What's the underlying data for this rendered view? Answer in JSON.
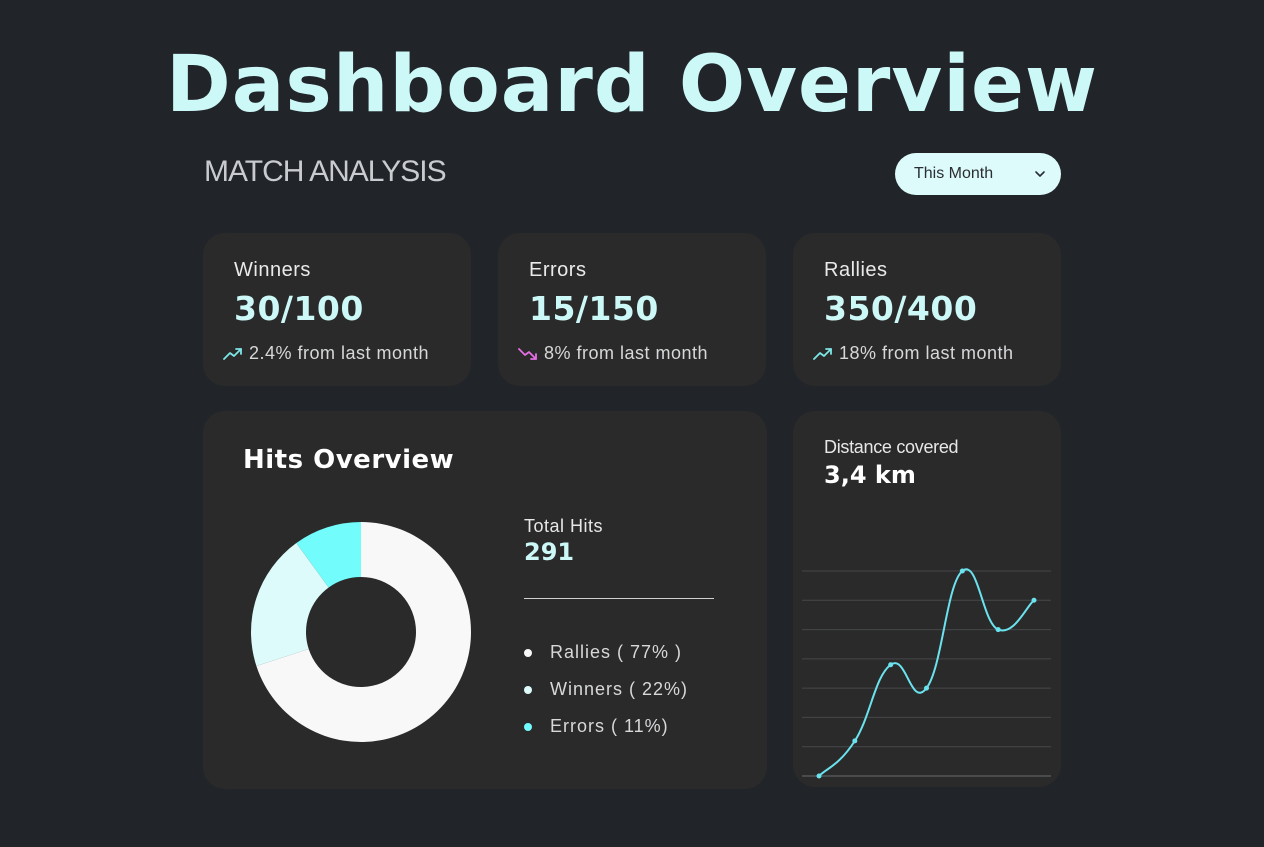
{
  "title": "Dashboard Overview",
  "subtitle": "MATCH ANALYSIS",
  "period_select": {
    "value": "This Month",
    "icon": "chevron-down-icon"
  },
  "stats": [
    {
      "label": "Winners",
      "value": "30/100",
      "trend": "2.4% from last month",
      "direction": "up",
      "trend_icon": "trend-up-icon",
      "trend_color": "#7de6e6"
    },
    {
      "label": "Errors",
      "value": "15/150",
      "trend": "8% from last month",
      "direction": "down",
      "trend_icon": "trend-down-icon",
      "trend_color": "#e46ee4"
    },
    {
      "label": "Rallies",
      "value": "350/400",
      "trend": "18% from last month",
      "direction": "up",
      "trend_icon": "trend-up-icon",
      "trend_color": "#7de6e6"
    }
  ],
  "hits": {
    "title": "Hits Overview",
    "total_label": "Total Hits",
    "total_value": "291",
    "legend": [
      {
        "label": "Rallies  ( 77% )",
        "color": "#f8f8f8"
      },
      {
        "label": "Winners  ( 22%)",
        "color": "#ddfbfb"
      },
      {
        "label": "Errors  ( 11%)",
        "color": "#72fcfc"
      }
    ]
  },
  "distance": {
    "label": "Distance covered",
    "value": "3,4 km"
  },
  "colors": {
    "background": "#212429",
    "card": "#2a2a2a",
    "accent": "#cdf8f8",
    "line": "#6be3ef"
  },
  "chart_data": [
    {
      "type": "pie",
      "categories": [
        "Rallies",
        "Winners",
        "Errors"
      ],
      "values": [
        77,
        22,
        11
      ],
      "colors": [
        "#f8f8f8",
        "#ddfbfb",
        "#72fcfc"
      ]
    },
    {
      "type": "line",
      "x": [
        1,
        2,
        3,
        4,
        5,
        6,
        7
      ],
      "values": [
        0,
        12,
        38,
        30,
        70,
        50,
        60
      ],
      "ylim": [
        0,
        70
      ],
      "grid": true
    }
  ]
}
